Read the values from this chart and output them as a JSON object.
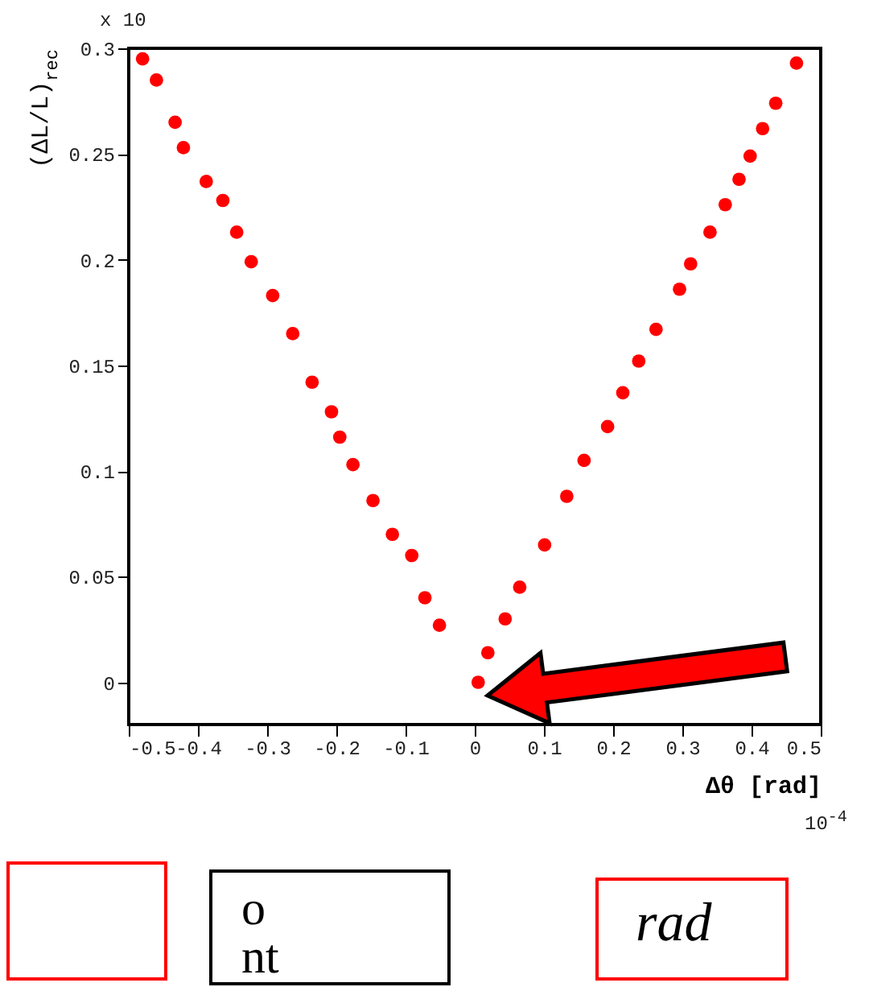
{
  "chart_data": {
    "type": "scatter",
    "xlabel": "Δθ [rad]",
    "ylabel": "(ΔL/L)$_{rec}$",
    "x": [
      -0.48,
      -0.46,
      -0.433,
      -0.421,
      -0.388,
      -0.364,
      -0.344,
      -0.323,
      -0.292,
      -0.263,
      -0.235,
      -0.207,
      -0.195,
      -0.176,
      -0.147,
      -0.119,
      -0.091,
      -0.072,
      -0.051,
      0.005,
      0.019,
      0.044,
      0.065,
      0.101,
      0.133,
      0.158,
      0.192,
      0.214,
      0.237,
      0.262,
      0.296,
      0.312,
      0.34,
      0.362,
      0.382,
      0.398,
      0.416,
      0.435,
      0.465
    ],
    "series": [
      {
        "color": "#ff0000",
        "values": [
          0.295,
          0.285,
          0.265,
          0.253,
          0.237,
          0.228,
          0.213,
          0.199,
          0.183,
          0.165,
          0.142,
          0.128,
          0.116,
          0.103,
          0.086,
          0.07,
          0.06,
          0.04,
          0.027,
          0.0,
          0.014,
          0.03,
          0.045,
          0.065,
          0.088,
          0.105,
          0.121,
          0.137,
          0.152,
          0.167,
          0.186,
          0.198,
          0.213,
          0.226,
          0.238,
          0.249,
          0.262,
          0.274,
          0.293
        ]
      }
    ],
    "xlim": [
      -0.5,
      0.5
    ],
    "xticks": [
      -0.5,
      -0.4,
      -0.3,
      -0.2,
      -0.1,
      0,
      0.1,
      0.2,
      0.3,
      0.4,
      0.5
    ],
    "ylim": [
      -0.02,
      0.3
    ],
    "yticks": [
      0,
      0.05,
      0.1,
      0.15,
      0.2,
      0.25,
      0.3
    ],
    "marker": "circle",
    "grid": false,
    "legend": false,
    "annotations": [
      "10$^{-4}$",
      "x 10",
      "o",
      "nt",
      "rad"
    ]
  }
}
